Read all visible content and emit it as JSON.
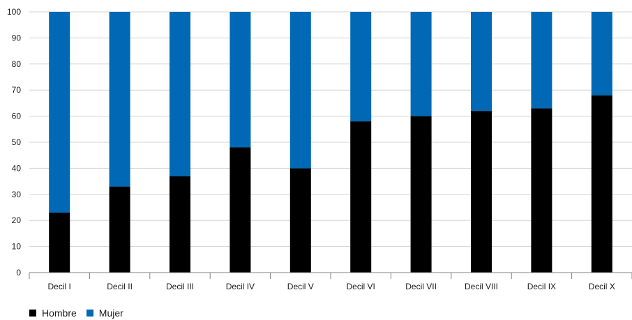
{
  "chart_data": {
    "type": "bar",
    "stacked": true,
    "categories": [
      "Decil I",
      "Decil II",
      "Decil III",
      "Decil IV",
      "Decil V",
      "Decil VI",
      "Decil VII",
      "Decil VIII",
      "Decil IX",
      "Decil X"
    ],
    "series": [
      {
        "name": "Hombre",
        "color": "#000000",
        "values": [
          23,
          33,
          37,
          48,
          40,
          58,
          60,
          62,
          63,
          68
        ]
      },
      {
        "name": "Mujer",
        "color": "#0068b4",
        "values": [
          77,
          67,
          63,
          52,
          60,
          42,
          40,
          38,
          37,
          32
        ]
      }
    ],
    "yticks": [
      0,
      10,
      20,
      30,
      40,
      50,
      60,
      70,
      80,
      90,
      100
    ],
    "ylim": [
      0,
      100
    ],
    "grid": true,
    "legend_position": "bottom-left",
    "title": "",
    "xlabel": "",
    "ylabel": ""
  }
}
